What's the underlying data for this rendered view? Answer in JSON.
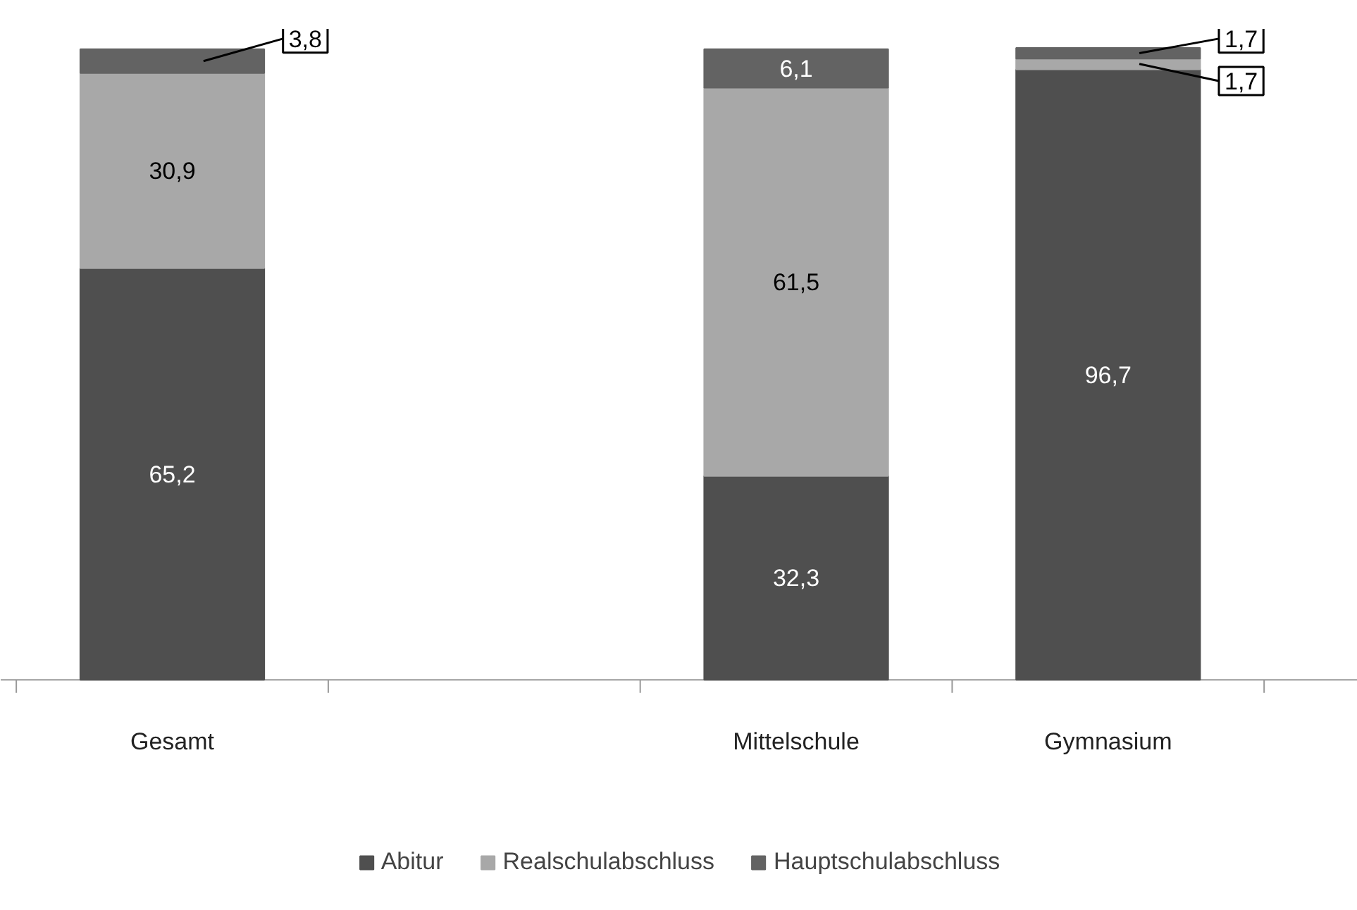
{
  "chart_data": {
    "type": "bar",
    "stacked": true,
    "categories": [
      "Gesamt",
      null,
      "Mittelschule",
      "Gymnasium"
    ],
    "series": [
      {
        "name": "Abitur",
        "color": "#4f4f4f",
        "values": [
          65.2,
          null,
          32.3,
          96.7
        ],
        "value_labels": [
          "65,2",
          null,
          "32,3",
          "96,7"
        ]
      },
      {
        "name": "Realschulabschluss",
        "color": "#a8a8a8",
        "values": [
          30.9,
          null,
          61.5,
          1.7
        ],
        "value_labels": [
          "30,9",
          null,
          "61,5",
          "1,7"
        ]
      },
      {
        "name": "Hauptschulabschluss",
        "color": "#636363",
        "values": [
          3.8,
          null,
          6.1,
          1.7
        ],
        "value_labels": [
          "3,8",
          null,
          "6,1",
          "1,7"
        ]
      }
    ],
    "legend": "bottom",
    "grid": false
  }
}
